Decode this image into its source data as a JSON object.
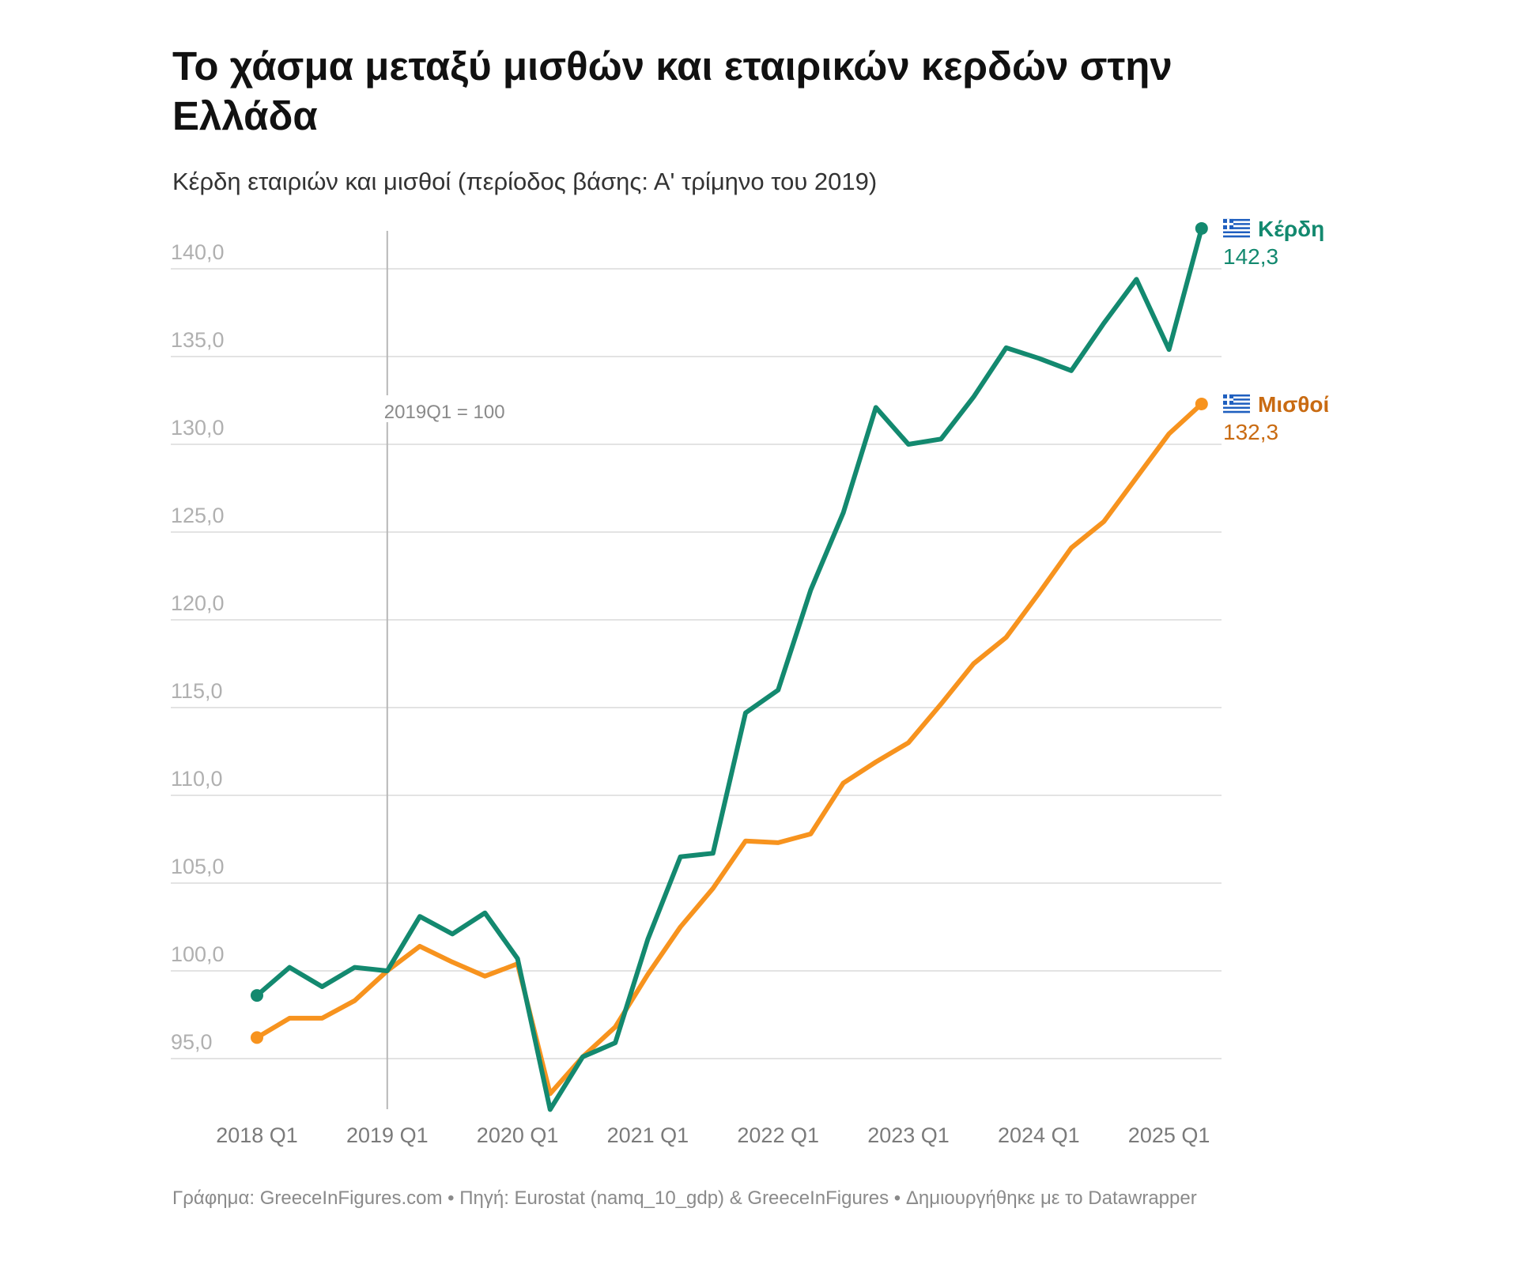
{
  "header": {
    "title": "Το χάσμα μεταξύ μισθών και εταιρικών κερδών στην Ελλάδα",
    "subtitle": "Κέρδη εταιριών και μισθοί (περίοδος βάσης: Α' τρίμηνο του 2019)"
  },
  "footer": {
    "text": "Γράφημα: GreeceInFigures.com • Πηγή: Eurostat (namq_10_gdp) & GreeceInFigures • Δημιουργήθηκε με το Datawrapper"
  },
  "chart_data": {
    "type": "line",
    "title": "Το χάσμα μεταξύ μισθών και εταιρικών κερδών στην Ελλάδα",
    "subtitle": "Κέρδη εταιριών και μισθοί (περίοδος βάσης: Α' τρίμηνο του 2019)",
    "xlabel": "",
    "ylabel": "",
    "ylim": [
      92,
      142.3
    ],
    "yticks": [
      95,
      100,
      105,
      110,
      115,
      120,
      125,
      130,
      135,
      140
    ],
    "ytick_labels": [
      "95,0",
      "100,0",
      "105,0",
      "110,0",
      "115,0",
      "120,0",
      "125,0",
      "130,0",
      "135,0",
      "140,0"
    ],
    "xtick_labels": [
      "2018 Q1",
      "2019 Q1",
      "2020 Q1",
      "2021 Q1",
      "2022 Q1",
      "2023 Q1",
      "2024 Q1",
      "2025 Q1"
    ],
    "grid": true,
    "legend": "inline-right",
    "x": [
      "2018Q1",
      "2018Q2",
      "2018Q3",
      "2018Q4",
      "2019Q1",
      "2019Q2",
      "2019Q3",
      "2019Q4",
      "2020Q1",
      "2020Q2",
      "2020Q3",
      "2020Q4",
      "2021Q1",
      "2021Q2",
      "2021Q3",
      "2021Q4",
      "2022Q1",
      "2022Q2",
      "2022Q3",
      "2022Q4",
      "2023Q1",
      "2023Q2",
      "2023Q3",
      "2023Q4",
      "2024Q1",
      "2024Q2",
      "2024Q3",
      "2024Q4",
      "2025Q1",
      "2025Q2"
    ],
    "series": [
      {
        "name": "Κέρδη",
        "color": "#13896f",
        "flag_icon": "greek-flag-icon",
        "end_label": "142,3",
        "values": [
          98.6,
          100.2,
          99.1,
          100.2,
          100.0,
          103.1,
          102.1,
          103.3,
          100.7,
          92.1,
          95.1,
          95.9,
          101.8,
          106.5,
          106.7,
          114.7,
          116.0,
          121.7,
          126.1,
          132.1,
          130.0,
          130.3,
          132.7,
          135.5,
          134.9,
          134.2,
          136.9,
          139.4,
          135.4,
          142.3
        ]
      },
      {
        "name": "Μισθοί",
        "color": "#f7931e",
        "label_color": "#c96b12",
        "flag_icon": "greek-flag-icon",
        "end_label": "132,3",
        "values": [
          96.2,
          97.3,
          97.3,
          98.3,
          100.0,
          101.4,
          100.5,
          99.7,
          100.4,
          93.0,
          95.1,
          96.8,
          99.8,
          102.5,
          104.7,
          107.4,
          107.3,
          107.8,
          110.7,
          111.9,
          113.0,
          115.2,
          117.5,
          119.0,
          121.5,
          124.1,
          125.6,
          128.1,
          130.6,
          132.3
        ]
      }
    ],
    "annotations": [
      {
        "text": "2019Q1 = 100",
        "x": "2019Q1"
      }
    ]
  }
}
